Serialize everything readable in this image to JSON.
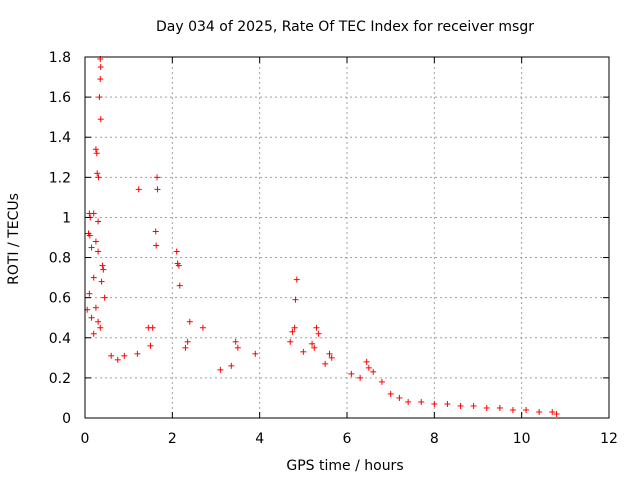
{
  "chart_data": {
    "type": "scatter",
    "title": "Day 034 of 2025, Rate Of TEC Index for receiver msgr",
    "xlabel": "GPS time / hours",
    "ylabel": "ROTI / TECUs",
    "xlim": [
      0,
      12
    ],
    "ylim": [
      0,
      1.8
    ],
    "xticks": [
      "0",
      "2",
      "4",
      "6",
      "8",
      "10",
      "12"
    ],
    "yticks": [
      "0",
      "0.2",
      "0.4",
      "0.6",
      "0.8",
      "1",
      "1.2",
      "1.4",
      "1.6",
      "1.8"
    ],
    "grid": true,
    "marker": "+",
    "color": "#ff0000",
    "series": [
      {
        "name": "ROTI",
        "points": [
          [
            0.35,
            1.79
          ],
          [
            0.36,
            1.75
          ],
          [
            0.35,
            1.69
          ],
          [
            0.33,
            1.6
          ],
          [
            0.36,
            1.49
          ],
          [
            0.25,
            1.34
          ],
          [
            0.27,
            1.32
          ],
          [
            0.28,
            1.22
          ],
          [
            0.31,
            1.2
          ],
          [
            0.1,
            1.02
          ],
          [
            0.12,
            1.0
          ],
          [
            0.2,
            1.02
          ],
          [
            0.3,
            0.98
          ],
          [
            0.08,
            0.92
          ],
          [
            0.11,
            0.91
          ],
          [
            0.25,
            0.88
          ],
          [
            0.15,
            0.85
          ],
          [
            0.3,
            0.83
          ],
          [
            0.4,
            0.76
          ],
          [
            0.42,
            0.74
          ],
          [
            0.2,
            0.7
          ],
          [
            0.38,
            0.68
          ],
          [
            0.1,
            0.62
          ],
          [
            0.45,
            0.6
          ],
          [
            0.25,
            0.55
          ],
          [
            0.05,
            0.54
          ],
          [
            0.15,
            0.5
          ],
          [
            0.3,
            0.48
          ],
          [
            0.35,
            0.45
          ],
          [
            0.2,
            0.42
          ],
          [
            1.23,
            1.14
          ],
          [
            1.65,
            1.2
          ],
          [
            1.66,
            1.14
          ],
          [
            1.62,
            0.93
          ],
          [
            1.63,
            0.86
          ],
          [
            2.1,
            0.83
          ],
          [
            2.12,
            0.77
          ],
          [
            2.15,
            0.76
          ],
          [
            2.17,
            0.66
          ],
          [
            2.4,
            0.48
          ],
          [
            2.7,
            0.45
          ],
          [
            2.35,
            0.38
          ],
          [
            2.3,
            0.35
          ],
          [
            1.45,
            0.45
          ],
          [
            1.55,
            0.45
          ],
          [
            1.5,
            0.36
          ],
          [
            1.2,
            0.32
          ],
          [
            0.9,
            0.31
          ],
          [
            0.75,
            0.29
          ],
          [
            0.6,
            0.31
          ],
          [
            3.45,
            0.38
          ],
          [
            3.5,
            0.35
          ],
          [
            3.9,
            0.32
          ],
          [
            3.35,
            0.26
          ],
          [
            3.1,
            0.24
          ],
          [
            4.85,
            0.69
          ],
          [
            4.82,
            0.59
          ],
          [
            4.8,
            0.45
          ],
          [
            4.75,
            0.43
          ],
          [
            4.7,
            0.38
          ],
          [
            5.0,
            0.33
          ],
          [
            5.3,
            0.45
          ],
          [
            5.35,
            0.42
          ],
          [
            5.2,
            0.37
          ],
          [
            5.25,
            0.35
          ],
          [
            5.6,
            0.32
          ],
          [
            5.65,
            0.3
          ],
          [
            5.5,
            0.27
          ],
          [
            6.45,
            0.28
          ],
          [
            6.5,
            0.25
          ],
          [
            6.6,
            0.23
          ],
          [
            6.1,
            0.22
          ],
          [
            6.3,
            0.2
          ],
          [
            6.8,
            0.18
          ],
          [
            7.0,
            0.12
          ],
          [
            7.2,
            0.1
          ],
          [
            7.4,
            0.08
          ],
          [
            7.7,
            0.08
          ],
          [
            8.0,
            0.07
          ],
          [
            8.3,
            0.07
          ],
          [
            8.6,
            0.06
          ],
          [
            8.9,
            0.06
          ],
          [
            9.2,
            0.05
          ],
          [
            9.5,
            0.05
          ],
          [
            9.8,
            0.04
          ],
          [
            10.1,
            0.04
          ],
          [
            10.4,
            0.03
          ],
          [
            10.7,
            0.03
          ],
          [
            10.8,
            0.02
          ]
        ]
      }
    ]
  }
}
